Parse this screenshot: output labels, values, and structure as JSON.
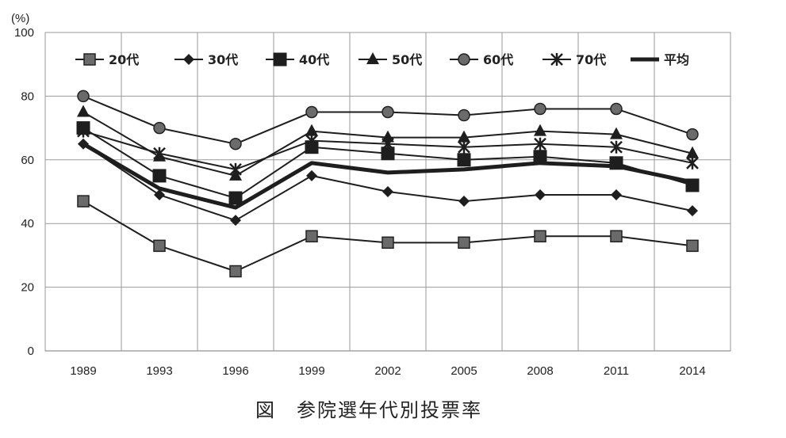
{
  "chart_data": {
    "type": "line",
    "y_unit": "(%)",
    "ylim": [
      0,
      100
    ],
    "yticks": [
      0,
      20,
      40,
      60,
      80,
      100
    ],
    "categories": [
      "1989",
      "1993",
      "1996",
      "1999",
      "2002",
      "2005",
      "2008",
      "2011",
      "2014"
    ],
    "grid": true,
    "legend_position": "top",
    "series": [
      {
        "name": "20代",
        "marker": "square-gray",
        "values": [
          47,
          33,
          25,
          36,
          34,
          34,
          36,
          36,
          33
        ]
      },
      {
        "name": "30代",
        "marker": "diamond",
        "values": [
          65,
          49,
          41,
          55,
          50,
          47,
          49,
          49,
          44
        ]
      },
      {
        "name": "40代",
        "marker": "square",
        "values": [
          70,
          55,
          48,
          64,
          62,
          60,
          61,
          59,
          52
        ]
      },
      {
        "name": "50代",
        "marker": "triangle",
        "values": [
          75,
          61,
          55,
          69,
          67,
          67,
          69,
          68,
          62
        ]
      },
      {
        "name": "60代",
        "marker": "circle",
        "values": [
          80,
          70,
          65,
          75,
          75,
          74,
          76,
          76,
          68
        ]
      },
      {
        "name": "70代",
        "marker": "asterisk",
        "values": [
          69,
          62,
          57,
          66,
          65,
          64,
          65,
          64,
          59
        ]
      },
      {
        "name": "平均",
        "marker": "none",
        "values": [
          65,
          51,
          45,
          59,
          56,
          57,
          59,
          58,
          53
        ]
      }
    ]
  },
  "caption": "図　参院選年代別投票率"
}
